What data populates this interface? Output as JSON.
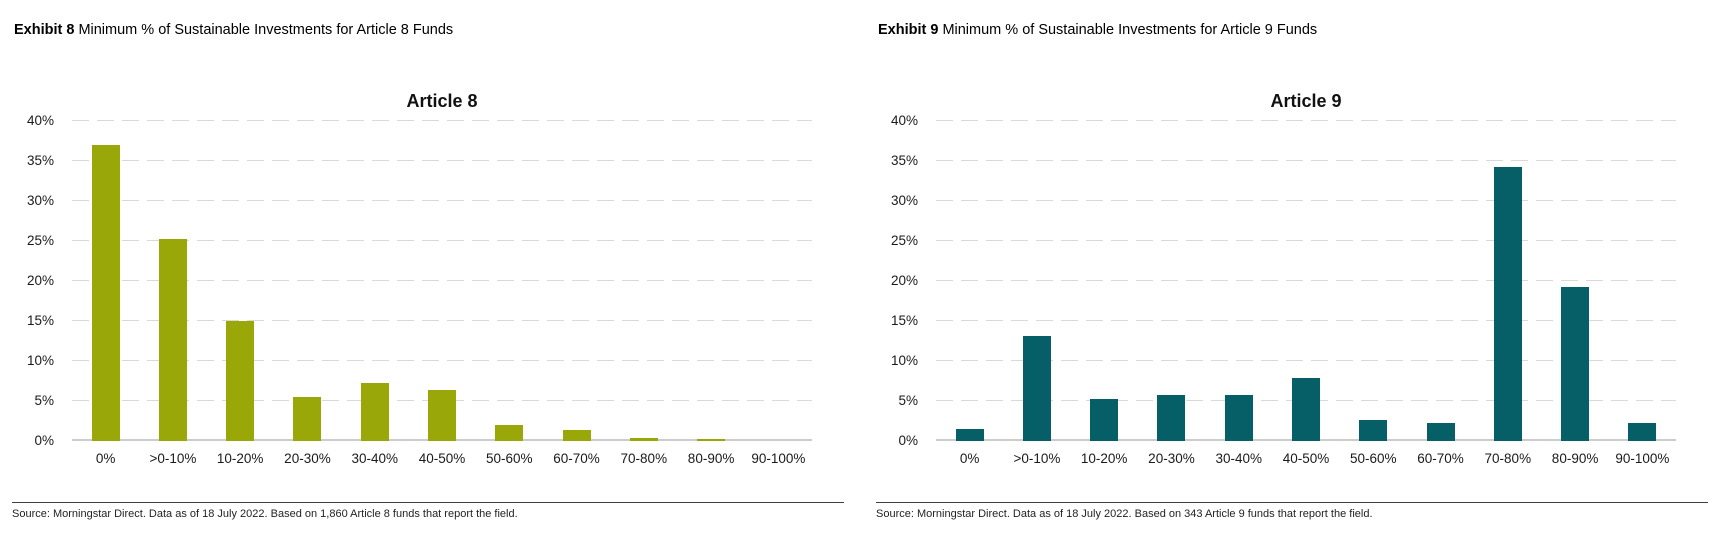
{
  "document": {
    "background": "#ffffff",
    "text_color": "#1a1a1a"
  },
  "panels": [
    {
      "exhibit_label": "Exhibit 8",
      "exhibit_caption": "Minimum % of Sustainable Investments for Article 8 Funds",
      "source": "Source: Morningstar Direct. Data as of 18 July 2022. Based on 1,860 Article 8 funds that report the field."
    },
    {
      "exhibit_label": "Exhibit 9",
      "exhibit_caption": "Minimum % of Sustainable Investments for Article 9 Funds",
      "source": "Source: Morningstar Direct. Data as of 18 July 2022. Based on 343 Article 9 funds that report the field."
    }
  ],
  "chart_data": [
    {
      "type": "bar",
      "title": "Article 8",
      "categories": [
        "0%",
        ">0-10%",
        "10-20%",
        "20-30%",
        "30-40%",
        "40-50%",
        "50-60%",
        "60-70%",
        "70-80%",
        "80-90%",
        "90-100%"
      ],
      "values": [
        37.0,
        25.3,
        15.0,
        5.5,
        7.2,
        6.4,
        2.0,
        1.4,
        0.4,
        0.3,
        0.0
      ],
      "bar_color": "#9AA708",
      "xlabel": "",
      "ylabel": "",
      "ylim": [
        0,
        40
      ],
      "ytick_step": 5,
      "ytick_suffix": "%",
      "grid": "horizontal-dashed",
      "legend": "none"
    },
    {
      "type": "bar",
      "title": "Article 9",
      "categories": [
        "0%",
        ">0-10%",
        "10-20%",
        "20-30%",
        "30-40%",
        "40-50%",
        "50-60%",
        "60-70%",
        "70-80%",
        "80-90%",
        "90-100%"
      ],
      "values": [
        1.5,
        13.1,
        5.2,
        5.8,
        5.8,
        7.9,
        2.6,
        2.3,
        34.2,
        19.2,
        2.3
      ],
      "bar_color": "#065F66",
      "xlabel": "",
      "ylabel": "",
      "ylim": [
        0,
        40
      ],
      "ytick_step": 5,
      "ytick_suffix": "%",
      "grid": "horizontal-dashed",
      "legend": "none"
    }
  ]
}
